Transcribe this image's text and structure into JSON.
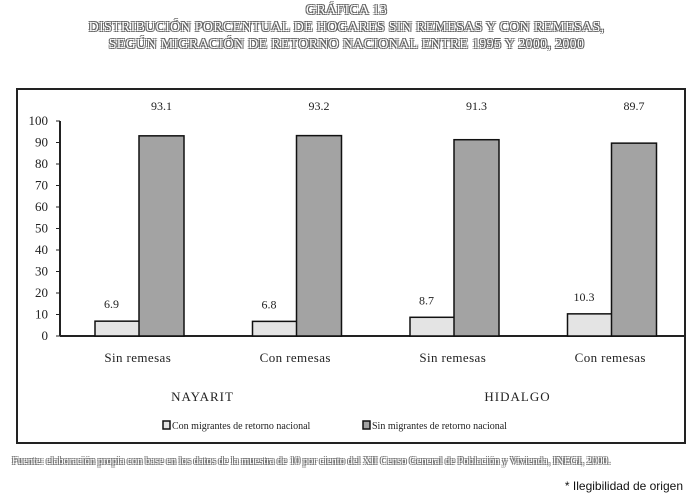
{
  "header": {
    "title_line1": "GRÁFICA 13",
    "title_line2": "DISTRIBUCIÓN PORCENTUAL DE HOGARES SIN REMESAS Y CON REMESAS,",
    "title_line3": "SEGÚN MIGRACIÓN DE RETORNO NACIONAL ENTRE 1995 Y 2000, 2000"
  },
  "chart_data": {
    "type": "bar",
    "categories": [
      "Sin remesas",
      "Con remesas",
      "Sin remesas",
      "Con remesas"
    ],
    "groups": [
      {
        "label": "NAYARIT",
        "categories": [
          "Sin remesas",
          "Con remesas"
        ]
      },
      {
        "label": "HIDALGO",
        "categories": [
          "Sin remesas",
          "Con remesas"
        ]
      }
    ],
    "series": [
      {
        "name": "Con migrantes de retorno nacional",
        "values": [
          6.9,
          6.8,
          8.7,
          10.3
        ],
        "color": "#e4e4e4"
      },
      {
        "name": "Sin migrantes de retorno nacional",
        "values": [
          93.1,
          93.2,
          91.3,
          89.7
        ],
        "color": "#a3a3a3"
      }
    ],
    "ylim": [
      0,
      100
    ],
    "yticks": [
      0,
      10,
      20,
      30,
      40,
      50,
      60,
      70,
      80,
      90,
      100
    ],
    "grid": false,
    "legend_position": "bottom"
  },
  "footer": {
    "source": "Fuente: elaboración propia con base en los datos de la muestra de 10 por ciento del XII Censo General de Población y Vivienda, INEGI, 2000.",
    "note": "* Ilegibilidad de origen"
  }
}
